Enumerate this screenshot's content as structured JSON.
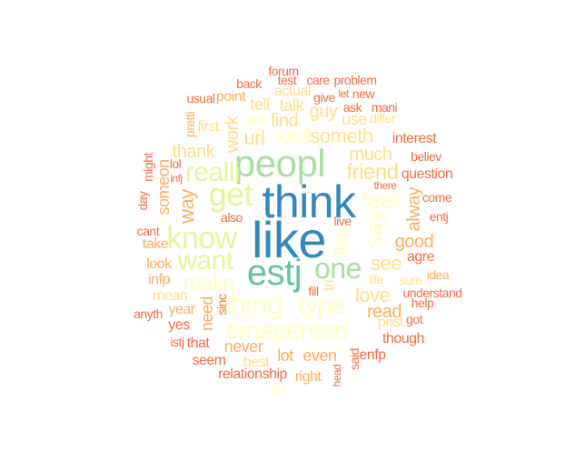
{
  "palette": {
    "dark_blue": "#3288bd",
    "teal": "#66c2a5",
    "green": "#abdda4",
    "light_green": "#e6f598",
    "light_yellow": "#ffffbf",
    "yellow": "#fee08b",
    "orange": "#fdae61",
    "red_orange": "#f46d43"
  },
  "words": [
    {
      "text": "think",
      "color": "dark_blue"
    },
    {
      "text": "like",
      "color": "dark_blue"
    },
    {
      "text": "estj",
      "color": "teal"
    },
    {
      "text": "peopl",
      "color": "green"
    },
    {
      "text": "one",
      "color": "green"
    },
    {
      "text": "get",
      "color": "light_green"
    },
    {
      "text": "know",
      "color": "light_green"
    },
    {
      "text": "realli",
      "color": "light_green"
    },
    {
      "text": "want",
      "color": "light_green"
    },
    {
      "text": "thing",
      "color": "light_yellow"
    },
    {
      "text": "type",
      "color": "light_yellow"
    },
    {
      "text": "timeperson",
      "color": "light_yellow"
    },
    {
      "text": "make",
      "color": "light_yellow"
    },
    {
      "text": "feel",
      "color": "light_yellow"
    },
    {
      "text": "say",
      "color": "light_yellow"
    },
    {
      "text": "live",
      "color": "light_yellow"
    },
    {
      "text": "well",
      "color": "light_yellow"
    },
    {
      "text": "someth",
      "color": "yellow"
    },
    {
      "text": "friend",
      "color": "yellow"
    },
    {
      "text": "much",
      "color": "yellow"
    },
    {
      "text": "see",
      "color": "yellow"
    },
    {
      "text": "love",
      "color": "yellow"
    },
    {
      "text": "work",
      "color": "yellow"
    },
    {
      "text": "url",
      "color": "yellow"
    },
    {
      "text": "find",
      "color": "yellow"
    },
    {
      "text": "guy",
      "color": "yellow"
    },
    {
      "text": "use",
      "color": "yellow"
    },
    {
      "text": "talk",
      "color": "yellow"
    },
    {
      "text": "tell",
      "color": "yellow"
    },
    {
      "text": "actual",
      "color": "yellow"
    },
    {
      "text": "thank",
      "color": "yellow"
    },
    {
      "text": "way",
      "color": "orange"
    },
    {
      "text": "someon",
      "color": "orange"
    },
    {
      "text": "need",
      "color": "orange"
    },
    {
      "text": "alway",
      "color": "orange"
    },
    {
      "text": "good",
      "color": "orange"
    },
    {
      "text": "read",
      "color": "orange"
    },
    {
      "text": "never",
      "color": "orange"
    },
    {
      "text": "lot",
      "color": "orange"
    },
    {
      "text": "even",
      "color": "orange"
    },
    {
      "text": "relationship",
      "color": "red_orange"
    },
    {
      "text": "first",
      "color": "yellow"
    },
    {
      "text": "point",
      "color": "orange"
    },
    {
      "text": "pretti",
      "color": "orange"
    },
    {
      "text": "still",
      "color": "light_yellow"
    },
    {
      "text": "take",
      "color": "orange"
    },
    {
      "text": "look",
      "color": "orange"
    },
    {
      "text": "infp",
      "color": "orange"
    },
    {
      "text": "mean",
      "color": "yellow"
    },
    {
      "text": "year",
      "color": "orange"
    },
    {
      "text": "yes",
      "color": "red_orange"
    },
    {
      "text": "that",
      "color": "red_orange"
    },
    {
      "text": "seem",
      "color": "red_orange"
    },
    {
      "text": "best",
      "color": "yellow"
    },
    {
      "text": "right",
      "color": "orange"
    },
    {
      "text": "said",
      "color": "red_orange"
    },
    {
      "text": "head",
      "color": "red_orange"
    },
    {
      "text": "enfp",
      "color": "red_orange"
    },
    {
      "text": "though",
      "color": "red_orange"
    },
    {
      "text": "post",
      "color": "yellow"
    },
    {
      "text": "help",
      "color": "red_orange"
    },
    {
      "text": "got",
      "color": "red_orange"
    },
    {
      "text": "understand",
      "color": "red_orange"
    },
    {
      "text": "idea",
      "color": "orange"
    },
    {
      "text": "sure",
      "color": "yellow"
    },
    {
      "text": "life",
      "color": "yellow"
    },
    {
      "text": "agre",
      "color": "red_orange"
    },
    {
      "text": "entj",
      "color": "red_orange"
    },
    {
      "text": "come",
      "color": "red_orange"
    },
    {
      "text": "question",
      "color": "red_orange"
    },
    {
      "text": "believ",
      "color": "red_orange"
    },
    {
      "text": "interest",
      "color": "red_orange"
    },
    {
      "text": "there",
      "color": "red_orange"
    },
    {
      "text": "differ",
      "color": "yellow"
    },
    {
      "text": "mani",
      "color": "red_orange"
    },
    {
      "text": "ask",
      "color": "red_orange"
    },
    {
      "text": "new",
      "color": "red_orange"
    },
    {
      "text": "let",
      "color": "red_orange"
    },
    {
      "text": "give",
      "color": "red_orange"
    },
    {
      "text": "problem",
      "color": "red_orange"
    },
    {
      "text": "care",
      "color": "red_orange"
    },
    {
      "text": "test",
      "color": "red_orange"
    },
    {
      "text": "forum",
      "color": "red_orange"
    },
    {
      "text": "back",
      "color": "red_orange"
    },
    {
      "text": "usual",
      "color": "red_orange"
    },
    {
      "text": "might",
      "color": "red_orange"
    },
    {
      "text": "lol",
      "color": "red_orange"
    },
    {
      "text": "infj",
      "color": "red_orange"
    },
    {
      "text": "day",
      "color": "red_orange"
    },
    {
      "text": "cant",
      "color": "red_orange"
    },
    {
      "text": "anyth",
      "color": "red_orange"
    },
    {
      "text": "istj",
      "color": "red_orange"
    },
    {
      "text": "sinc",
      "color": "red_orange"
    },
    {
      "text": "also",
      "color": "red_orange"
    },
    {
      "text": "live",
      "color": "red_orange"
    },
    {
      "text": "fill",
      "color": "red_orange"
    },
    {
      "text": "tri",
      "color": "yellow"
    },
    {
      "text": "go",
      "color": "light_yellow"
    }
  ]
}
